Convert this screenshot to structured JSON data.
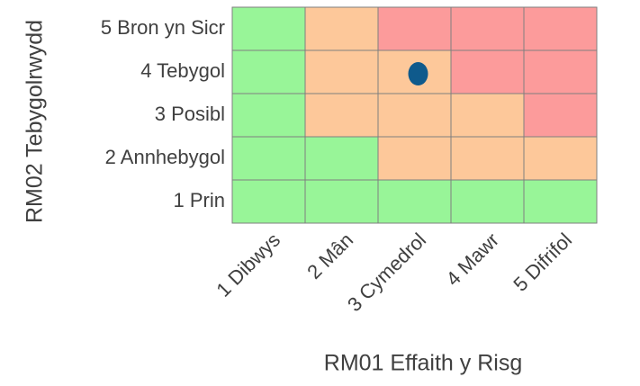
{
  "chart_data": {
    "type": "heatmap",
    "x_label": "RM01 Effaith y Risg",
    "y_label": "RM02 Tebygolrwydd",
    "x_categories": [
      "1 Dibwys",
      "2 Mân",
      "3 Cymedrol",
      "4 Mawr",
      "5 Difrifol"
    ],
    "y_categories": [
      "1 Prin",
      "2 Annhebygol",
      "3 Posibl",
      "4 Tebygol",
      "5 Bron yn Sicr"
    ],
    "cells": [
      [
        "#98f598",
        "#98f598",
        "#98f598",
        "#98f598",
        "#98f598"
      ],
      [
        "#98f598",
        "#98f598",
        "#fdc89a",
        "#fdc89a",
        "#fdc89a"
      ],
      [
        "#98f598",
        "#fdc89a",
        "#fdc89a",
        "#fdc89a",
        "#fc9b9b"
      ],
      [
        "#98f598",
        "#fdc89a",
        "#fdc89a",
        "#fc9b9b",
        "#fc9b9b"
      ],
      [
        "#98f598",
        "#fdc89a",
        "#fc9b9b",
        "#fc9b9b",
        "#fc9b9b"
      ]
    ],
    "points": [
      {
        "x": "3 Cymedrol",
        "y": "4 Tebygol",
        "color": "#0f5a8c"
      }
    ]
  }
}
